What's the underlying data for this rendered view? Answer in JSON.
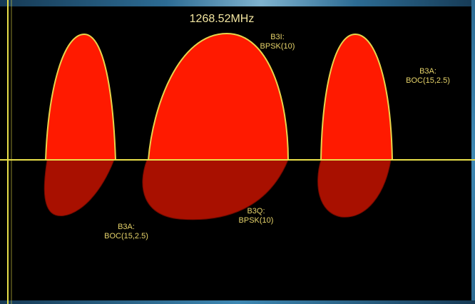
{
  "center_frequency": "1268.52MHz",
  "labels": {
    "b3i": {
      "name": "B3I:",
      "modulation": "BPSK(10)"
    },
    "b3a_upper": {
      "name": "B3A:",
      "modulation": "BOC(15,2.5)"
    },
    "b3a_lower": {
      "name": "B3A:",
      "modulation": "BOC(15,2.5)"
    },
    "b3q": {
      "name": "B3Q:",
      "modulation": "BPSK(10)"
    }
  },
  "colors": {
    "background": "#000000",
    "lobe_fill": "#ff1a00",
    "lobe_fill_lower": "#a81000",
    "lobe_outline": "#e8d44a",
    "axis": "#e8e04a",
    "text": "#e6d36a",
    "frame": "#2c6b93"
  }
}
